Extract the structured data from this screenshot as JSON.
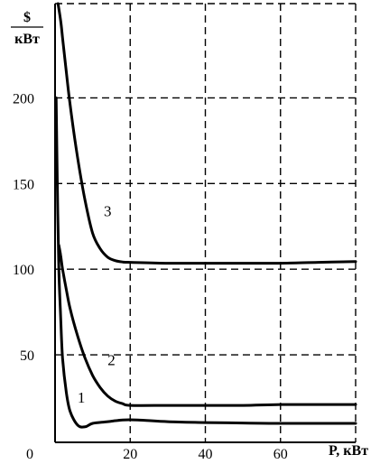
{
  "chart_data": {
    "type": "line",
    "title": "",
    "ylabel_top": "$",
    "ylabel_bottom": "кВт",
    "xlabel": "P, кВт",
    "xlim": [
      0,
      80
    ],
    "ylim": [
      0,
      255
    ],
    "x_ticks": [
      "0",
      "20",
      "40",
      "60"
    ],
    "y_ticks": [
      "50",
      "100",
      "150",
      "200"
    ],
    "grid": "dashed",
    "series": [
      {
        "name": "1",
        "x": [
          0.3,
          0.6,
          1.0,
          1.5,
          2.0,
          3.0,
          4.0,
          6.0,
          8.0,
          10.0,
          14.0,
          18.0,
          22.0,
          30.0,
          40.0,
          50.0,
          60.0,
          70.0,
          80.0
        ],
        "y": [
          200.0,
          150.0,
          100.0,
          72.0,
          48.0,
          28.0,
          17.0,
          9.0,
          8.0,
          10.0,
          11.0,
          12.0,
          12.0,
          11.0,
          10.5,
          10.2,
          10.0,
          10.0,
          10.0
        ]
      },
      {
        "name": "2",
        "x": [
          1.0,
          1.5,
          2.0,
          3.0,
          4.0,
          6.0,
          8.0,
          10.0,
          12.0,
          14.0,
          16.0,
          18.0,
          20.0,
          30.0,
          40.0,
          50.0,
          60.0,
          70.0,
          80.0
        ],
        "y": [
          114.0,
          108.0,
          100.0,
          88.0,
          77.0,
          61.0,
          48.0,
          38.0,
          31.0,
          26.0,
          23.0,
          21.5,
          20.5,
          20.5,
          20.5,
          20.5,
          21.0,
          21.0,
          21.0
        ]
      },
      {
        "name": "3",
        "x": [
          0.8,
          1.5,
          2.0,
          3.0,
          4.0,
          6.0,
          8.0,
          10.0,
          12.0,
          14.0,
          16.0,
          18.0,
          20.0,
          30.0,
          40.0,
          50.0,
          60.0,
          70.0,
          80.0
        ],
        "y": [
          255.0,
          245.0,
          235.0,
          215.0,
          196.0,
          165.0,
          140.0,
          121.0,
          112.0,
          107.0,
          105.0,
          104.2,
          104.0,
          103.5,
          103.5,
          103.5,
          103.5,
          104.0,
          104.5
        ]
      }
    ],
    "curve_labels": [
      {
        "text": "1",
        "x": 7,
        "y": 22
      },
      {
        "text": "2",
        "x": 15,
        "y": 44
      },
      {
        "text": "3",
        "x": 14,
        "y": 131
      }
    ]
  }
}
